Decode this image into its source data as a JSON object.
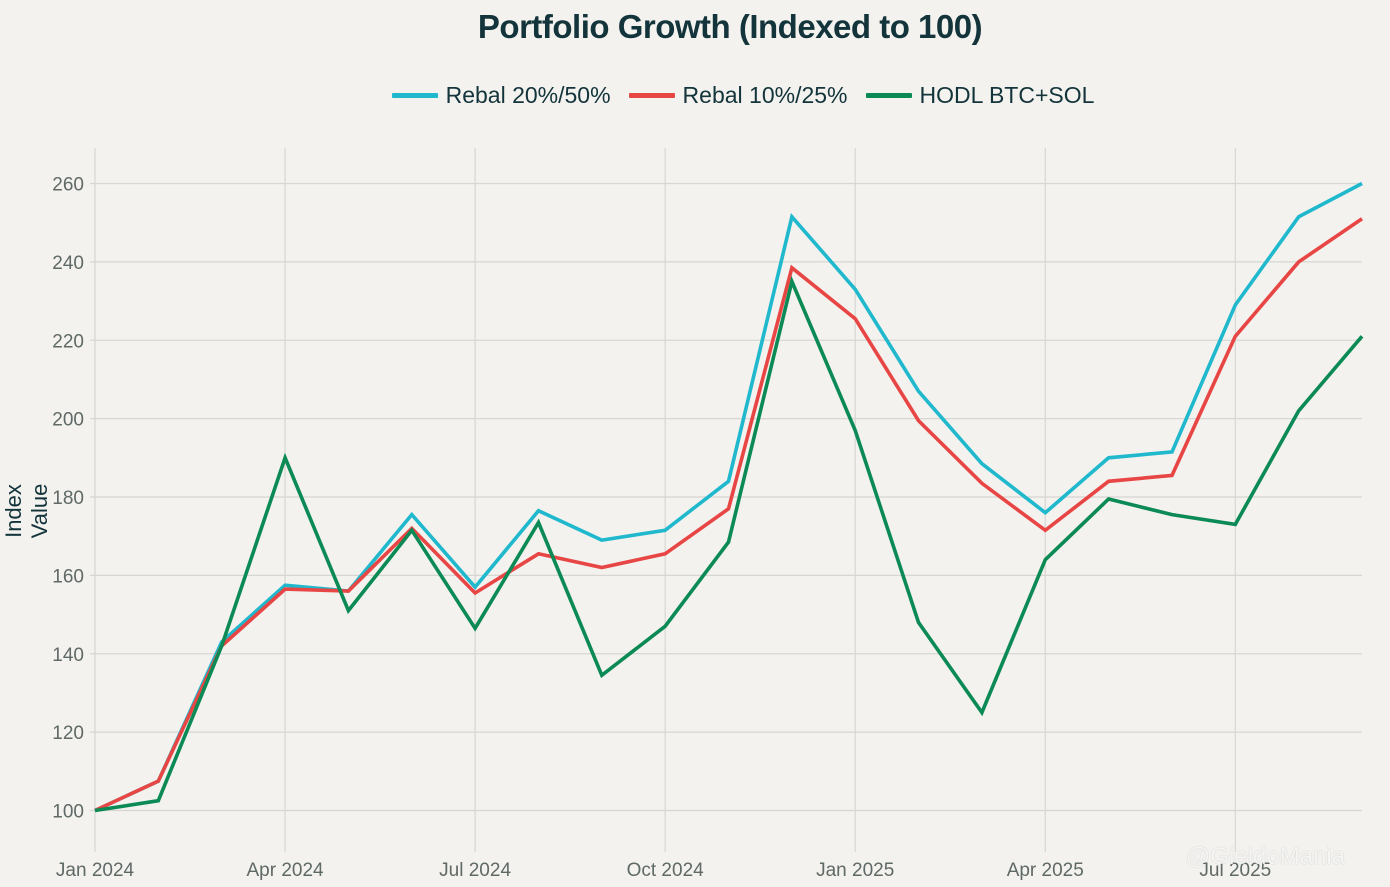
{
  "chart_data": {
    "type": "line",
    "title": "Portfolio Growth (Indexed to 100)",
    "xlabel": "",
    "ylabel": "Index Value",
    "ylim": [
      90,
      268
    ],
    "yticks": [
      100,
      120,
      140,
      160,
      180,
      200,
      220,
      240,
      260
    ],
    "grid": true,
    "legend_position": "top-center",
    "x": [
      "2024-01",
      "2024-02",
      "2024-03",
      "2024-04",
      "2024-05",
      "2024-06",
      "2024-07",
      "2024-08",
      "2024-09",
      "2024-10",
      "2024-11",
      "2024-12",
      "2025-01",
      "2025-02",
      "2025-03",
      "2025-04",
      "2025-05",
      "2025-06",
      "2025-07",
      "2025-08",
      "2025-09"
    ],
    "xticks": [
      {
        "index": 0,
        "label": "Jan 2024"
      },
      {
        "index": 3,
        "label": "Apr 2024"
      },
      {
        "index": 6,
        "label": "Jul 2024"
      },
      {
        "index": 9,
        "label": "Oct 2024"
      },
      {
        "index": 12,
        "label": "Jan 2025"
      },
      {
        "index": 15,
        "label": "Apr 2025"
      },
      {
        "index": 18,
        "label": "Jul 2025"
      }
    ],
    "series": [
      {
        "name": "Rebal 20%/50%",
        "color": "#1fb8cd",
        "values": [
          100,
          107.5,
          143,
          157.5,
          156,
          175.5,
          157,
          176.5,
          169,
          171.5,
          184,
          251.5,
          233,
          207,
          188.5,
          176,
          190,
          191.5,
          229,
          251.5,
          260
        ]
      },
      {
        "name": "Rebal 10%/25%",
        "color": "#e84545",
        "values": [
          100,
          107.5,
          142,
          156.5,
          156,
          172,
          155.5,
          165.5,
          162,
          165.5,
          177,
          238.5,
          225.5,
          199.5,
          183.5,
          171.5,
          184,
          185.5,
          221,
          240,
          251
        ]
      },
      {
        "name": "HODL BTC+SOL",
        "color": "#0b8a55",
        "values": [
          100,
          102.5,
          142,
          190,
          151,
          171.5,
          146.5,
          173.5,
          134.5,
          147,
          168.5,
          235,
          197,
          148,
          125,
          164,
          179.5,
          175.5,
          173,
          202,
          221
        ]
      }
    ]
  },
  "watermark": "@GieldoMania"
}
